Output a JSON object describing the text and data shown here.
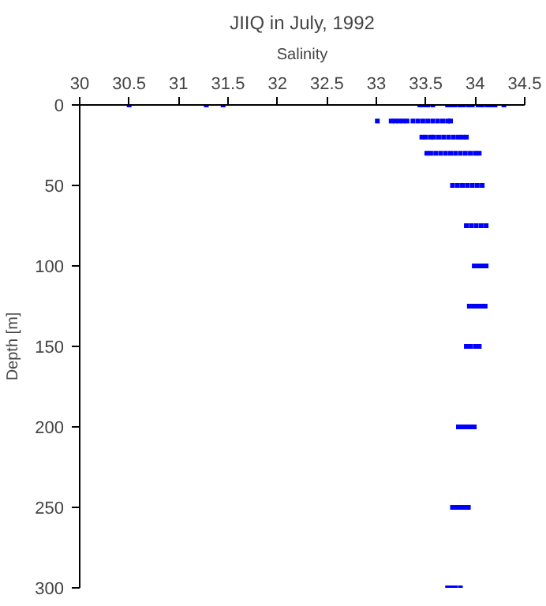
{
  "chart_data": {
    "type": "scatter",
    "title": "JIIQ in July, 1992",
    "xlabel": "Salinity",
    "ylabel": "Depth [m]",
    "xlim": [
      30,
      34.5
    ],
    "xticks": [
      30,
      30.5,
      31,
      31.5,
      32,
      32.5,
      33,
      33.5,
      34,
      34.5
    ],
    "ylim": [
      300,
      0
    ],
    "yticks": [
      0,
      50,
      100,
      150,
      200,
      250,
      300
    ],
    "marker": "square",
    "grid": false,
    "series": [
      {
        "color": "#0000ff",
        "x": [
          30.5,
          31.28,
          31.45,
          33.44,
          33.48,
          33.52,
          33.57,
          33.72,
          33.75,
          33.79,
          33.84,
          33.88,
          33.93,
          33.97,
          34.03,
          34.07,
          34.12,
          34.16,
          34.2,
          34.29,
          33.01,
          33.15,
          33.19,
          33.23,
          33.27,
          33.31,
          33.37,
          33.42,
          33.47,
          33.52,
          33.57,
          33.62,
          33.67,
          33.72,
          33.75,
          33.46,
          33.5,
          33.55,
          33.58,
          33.63,
          33.68,
          33.73,
          33.78,
          33.83,
          33.87,
          33.91,
          33.51,
          33.55,
          33.6,
          33.65,
          33.7,
          33.75,
          33.8,
          33.85,
          33.9,
          33.95,
          34.0,
          34.04,
          33.77,
          33.82,
          33.87,
          33.92,
          33.97,
          34.02,
          34.07,
          33.91,
          33.96,
          34.01,
          34.06,
          34.11,
          33.99,
          34.03,
          34.07,
          34.11,
          33.94,
          33.98,
          34.02,
          34.06,
          34.1,
          33.91,
          33.95,
          34.0,
          34.04,
          33.83,
          33.87,
          33.91,
          33.95,
          33.99,
          33.77,
          33.81,
          33.85,
          33.89,
          33.93,
          33.72,
          33.76,
          33.8,
          33.85
        ],
        "values": [
          0,
          0,
          0,
          0,
          0,
          0,
          0,
          0,
          0,
          0,
          0,
          0,
          0,
          0,
          0,
          0,
          0,
          0,
          0,
          0,
          10,
          10,
          10,
          10,
          10,
          10,
          10,
          10,
          10,
          10,
          10,
          10,
          10,
          10,
          10,
          20,
          20,
          20,
          20,
          20,
          20,
          20,
          20,
          20,
          20,
          20,
          30,
          30,
          30,
          30,
          30,
          30,
          30,
          30,
          30,
          30,
          30,
          30,
          50,
          50,
          50,
          50,
          50,
          50,
          50,
          75,
          75,
          75,
          75,
          75,
          100,
          100,
          100,
          100,
          125,
          125,
          125,
          125,
          125,
          150,
          150,
          150,
          150,
          200,
          200,
          200,
          200,
          200,
          250,
          250,
          250,
          250,
          250,
          300,
          300,
          300,
          300
        ]
      }
    ]
  }
}
